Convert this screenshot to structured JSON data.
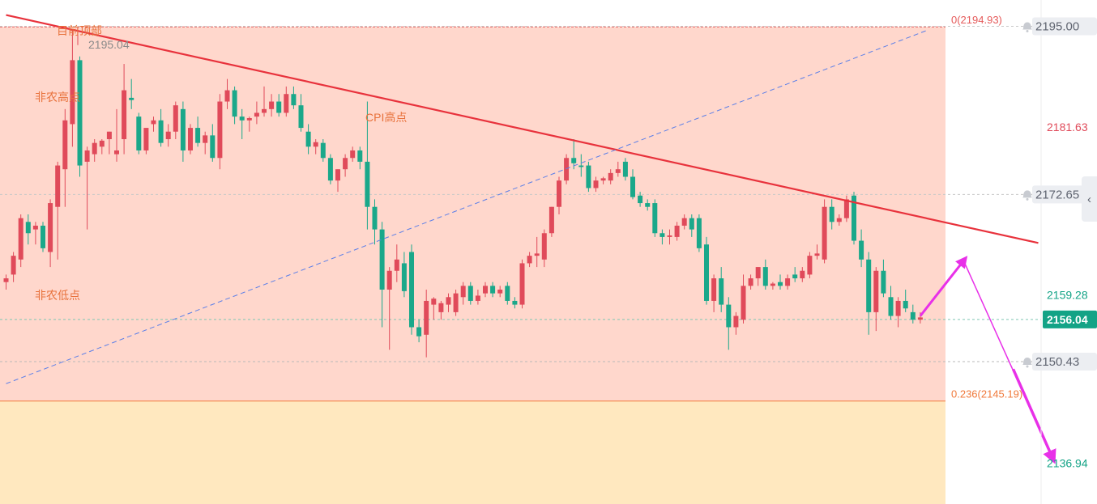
{
  "chart_data": {
    "type": "candlestick",
    "title": "",
    "xlabel": "",
    "ylabel": "",
    "ylim": [
      2131.5,
      2198.5
    ],
    "annotations": {
      "current_top": "目前顶部",
      "top_value_label": "2195.04",
      "nfp_high": "非农高点",
      "nfp_low": "非农低点",
      "cpi_high": "CPI高点"
    },
    "fib_levels": [
      {
        "label": "0(2194.93)",
        "value": 2194.93,
        "color": "#e55a5a"
      },
      {
        "label": "0.236(2145.19)",
        "value": 2145.19,
        "color": "#f07a3c"
      }
    ],
    "zones": [
      {
        "from": 2145.19,
        "to": 2194.93,
        "color": "#ffd7cc"
      },
      {
        "from": 2131.5,
        "to": 2145.19,
        "color": "#ffe8bf"
      }
    ],
    "price_lines": [
      {
        "value": 2195.0,
        "style": "dotted",
        "color": "#c8c8c8"
      },
      {
        "value": 2172.65,
        "style": "dotted",
        "color": "#c8c8c8"
      },
      {
        "value": 2156.04,
        "style": "dotted",
        "color": "#7fc7b3"
      },
      {
        "value": 2150.43,
        "style": "dotted",
        "color": "#b8b8b8"
      }
    ],
    "axis_labels": [
      {
        "text": "2195.00",
        "value": 2195.0,
        "kind": "badge",
        "alert": true
      },
      {
        "text": "2181.63",
        "value": 2181.63,
        "kind": "red"
      },
      {
        "text": "2172.65",
        "value": 2172.65,
        "kind": "badge",
        "alert": true
      },
      {
        "text": "2159.28",
        "value": 2159.28,
        "kind": "green"
      },
      {
        "text": "2156.04",
        "value": 2156.04,
        "kind": "current"
      },
      {
        "text": "2150.43",
        "value": 2150.43,
        "kind": "badge",
        "alert": true
      },
      {
        "text": "2136.94",
        "value": 2136.94,
        "kind": "green"
      }
    ],
    "trendlines": [
      {
        "name": "resistance",
        "points": [
          [
            0,
            2196.5
          ],
          [
            140,
            2166.2
          ]
        ],
        "color": "#e8323c",
        "style": "solid"
      },
      {
        "name": "support",
        "points": [
          [
            0,
            2147.5
          ],
          [
            125,
            2194.5
          ]
        ],
        "color": "#5b7fe8",
        "style": "dashed"
      }
    ],
    "projection": {
      "points": [
        [
          124,
          2156.5
        ],
        [
          130,
          2164.0
        ],
        [
          142,
          2137.5
        ]
      ],
      "color": "#e830e8"
    },
    "colors": {
      "up": "#e04a5a",
      "down": "#1aa88a"
    },
    "candles": [
      [
        2161,
        2162,
        2160,
        2161.5
      ],
      [
        2162,
        2165,
        2161,
        2164.5
      ],
      [
        2164,
        2170,
        2163,
        2169.5
      ],
      [
        2169,
        2170,
        2166,
        2167.5
      ],
      [
        2168,
        2169,
        2166,
        2168.5
      ],
      [
        2168.5,
        2169,
        2165,
        2165.5
      ],
      [
        2165,
        2172,
        2163,
        2171.5
      ],
      [
        2171,
        2177,
        2164,
        2176.5
      ],
      [
        2176,
        2184,
        2171,
        2182.5
      ],
      [
        2182,
        2194.5,
        2179,
        2190.5
      ],
      [
        2190.5,
        2191,
        2175,
        2176.5
      ],
      [
        2177,
        2179,
        2168,
        2178.5
      ],
      [
        2178,
        2180,
        2177,
        2179.5
      ],
      [
        2179,
        2180,
        2178,
        2179.8
      ],
      [
        2180,
        2181,
        2178,
        2181.0
      ],
      [
        2178,
        2184,
        2177,
        2178.5
      ],
      [
        2180,
        2190,
        2178,
        2186.5
      ],
      [
        2185.5,
        2188,
        2184,
        2185.2
      ],
      [
        2183,
        2183.5,
        2178,
        2178.5
      ],
      [
        2178.5,
        2181,
        2178,
        2181.5
      ],
      [
        2182,
        2183,
        2181,
        2182.5
      ],
      [
        2182.5,
        2184,
        2179,
        2179.5
      ],
      [
        2180,
        2182,
        2179,
        2181.0
      ],
      [
        2181,
        2185,
        2180,
        2184.5
      ],
      [
        2184,
        2185,
        2177,
        2178.5
      ],
      [
        2178.5,
        2182,
        2178,
        2181.5
      ],
      [
        2181.5,
        2183,
        2179,
        2179.5
      ],
      [
        2179.5,
        2181,
        2178,
        2180.5
      ],
      [
        2180.5,
        2182,
        2177,
        2177.5
      ],
      [
        2177.5,
        2186,
        2176,
        2185.0
      ],
      [
        2185,
        2188,
        2184,
        2186.5
      ],
      [
        2186.5,
        2187,
        2182,
        2183.0
      ],
      [
        2183,
        2184,
        2180,
        2182.5
      ],
      [
        2182.5,
        2183,
        2181,
        2182.8
      ],
      [
        2183,
        2185,
        2182,
        2183.5
      ],
      [
        2183.5,
        2187,
        2183,
        2184.0
      ],
      [
        2184,
        2186,
        2183,
        2185.0
      ],
      [
        2185,
        2186,
        2183,
        2183.5
      ],
      [
        2183.5,
        2187,
        2183,
        2186.0
      ],
      [
        2186,
        2187,
        2184,
        2184.5
      ],
      [
        2184.5,
        2186,
        2181,
        2181.5
      ],
      [
        2181,
        2182,
        2178,
        2179.0
      ],
      [
        2179,
        2180,
        2178,
        2179.6
      ],
      [
        2179.5,
        2180,
        2177,
        2177.5
      ],
      [
        2177.5,
        2178,
        2174,
        2174.5
      ],
      [
        2174.5,
        2176,
        2173,
        2176.0
      ],
      [
        2176,
        2178,
        2175,
        2177.5
      ],
      [
        2177.5,
        2179,
        2177,
        2178.5
      ],
      [
        2178.5,
        2179,
        2176,
        2177.0
      ],
      [
        2177,
        2185,
        2168,
        2171.0
      ],
      [
        2171,
        2172,
        2166,
        2168.0
      ],
      [
        2168,
        2169,
        2155,
        2160.0
      ],
      [
        2160,
        2163,
        2152,
        2162.5
      ],
      [
        2162.5,
        2166,
        2161,
        2164.0
      ],
      [
        2163.5,
        2165,
        2159,
        2159.8
      ],
      [
        2165,
        2166,
        2154,
        2155.0
      ],
      [
        2155,
        2156,
        2153,
        2153.8
      ],
      [
        2154,
        2160,
        2151,
        2158.5
      ],
      [
        2158,
        2159,
        2156,
        2158.8
      ],
      [
        2157,
        2158.5,
        2156,
        2158.2
      ],
      [
        2158,
        2159.5,
        2157,
        2159.0
      ],
      [
        2157,
        2160,
        2156.5,
        2159.5
      ],
      [
        2159,
        2161,
        2158,
        2160.5
      ],
      [
        2160.5,
        2161,
        2158,
        2158.5
      ],
      [
        2158.5,
        2160,
        2158,
        2159.2
      ],
      [
        2159.5,
        2161,
        2159,
        2160.5
      ],
      [
        2160.5,
        2161,
        2159,
        2159.5
      ],
      [
        2159.5,
        2160.5,
        2159,
        2160.0
      ],
      [
        2160.5,
        2161,
        2158,
        2158.5
      ],
      [
        2158.5,
        2159,
        2157.5,
        2158.0
      ],
      [
        2158,
        2164,
        2157.5,
        2163.5
      ],
      [
        2163.5,
        2165,
        2163,
        2164.5
      ],
      [
        2164.5,
        2167,
        2163,
        2164.8
      ],
      [
        2164,
        2168,
        2163,
        2167.5
      ],
      [
        2167.5,
        2171,
        2167,
        2171.0
      ],
      [
        2171,
        2175,
        2170,
        2174.5
      ],
      [
        2174.5,
        2178,
        2174,
        2177.5
      ],
      [
        2177.5,
        2180,
        2176,
        2176.8
      ],
      [
        2176.5,
        2178,
        2175,
        2176.3
      ],
      [
        2176.5,
        2177,
        2173,
        2173.5
      ],
      [
        2173.5,
        2175,
        2173,
        2174.5
      ],
      [
        2174.5,
        2175,
        2174,
        2174.8
      ],
      [
        2174.5,
        2176,
        2174,
        2175.5
      ],
      [
        2175.5,
        2177,
        2175,
        2176.0
      ],
      [
        2177,
        2177.5,
        2174.5,
        2175.0
      ],
      [
        2175,
        2176,
        2172,
        2172.3
      ],
      [
        2172.5,
        2173,
        2171,
        2171.5
      ],
      [
        2171.5,
        2172,
        2170.5,
        2171.0
      ],
      [
        2171.5,
        2172,
        2167,
        2167.5
      ],
      [
        2167.5,
        2168,
        2166,
        2167.0
      ],
      [
        2167,
        2168,
        2166,
        2167.2
      ],
      [
        2167,
        2169,
        2166.5,
        2168.5
      ],
      [
        2168.5,
        2170,
        2168,
        2169.5
      ],
      [
        2169.5,
        2170,
        2167,
        2168.0
      ],
      [
        2169.5,
        2170,
        2165,
        2165.5
      ],
      [
        2166,
        2167,
        2158,
        2158.5
      ],
      [
        2158.5,
        2162,
        2157,
        2161.5
      ],
      [
        2161.5,
        2163,
        2157,
        2158.0
      ],
      [
        2158,
        2159,
        2152,
        2155.0
      ],
      [
        2155,
        2157,
        2154,
        2156.5
      ],
      [
        2156,
        2162,
        2155.5,
        2160.5
      ],
      [
        2160.5,
        2162,
        2160,
        2161.5
      ],
      [
        2161.5,
        2163,
        2160.5,
        2163.0
      ],
      [
        2163,
        2164,
        2160,
        2160.5
      ],
      [
        2160.5,
        2161,
        2160,
        2160.8
      ],
      [
        2161,
        2162,
        2160,
        2160.5
      ],
      [
        2160.5,
        2162,
        2160,
        2161.5
      ],
      [
        2162,
        2163,
        2161,
        2161.5
      ],
      [
        2161.5,
        2163,
        2161,
        2162.5
      ],
      [
        2162,
        2165,
        2161.5,
        2164.5
      ],
      [
        2164.5,
        2166,
        2164,
        2164.8
      ],
      [
        2164,
        2172,
        2163.5,
        2171.0
      ],
      [
        2171,
        2172,
        2168,
        2169.0
      ],
      [
        2169,
        2170,
        2168.5,
        2169.5
      ],
      [
        2169.5,
        2172.5,
        2169,
        2172.0
      ],
      [
        2172.5,
        2173,
        2166,
        2166.5
      ],
      [
        2166.5,
        2168,
        2163,
        2164.0
      ],
      [
        2164,
        2165,
        2154,
        2157.0
      ],
      [
        2157,
        2163,
        2154.5,
        2162.5
      ],
      [
        2162.5,
        2164,
        2159,
        2159.5
      ],
      [
        2159,
        2160.5,
        2156,
        2156.5
      ],
      [
        2156.5,
        2159,
        2155,
        2158.5
      ],
      [
        2158.5,
        2160,
        2157,
        2157.5
      ],
      [
        2157,
        2158,
        2155.5,
        2156.0
      ],
      [
        2156,
        2157,
        2155.5,
        2156.3
      ]
    ]
  }
}
